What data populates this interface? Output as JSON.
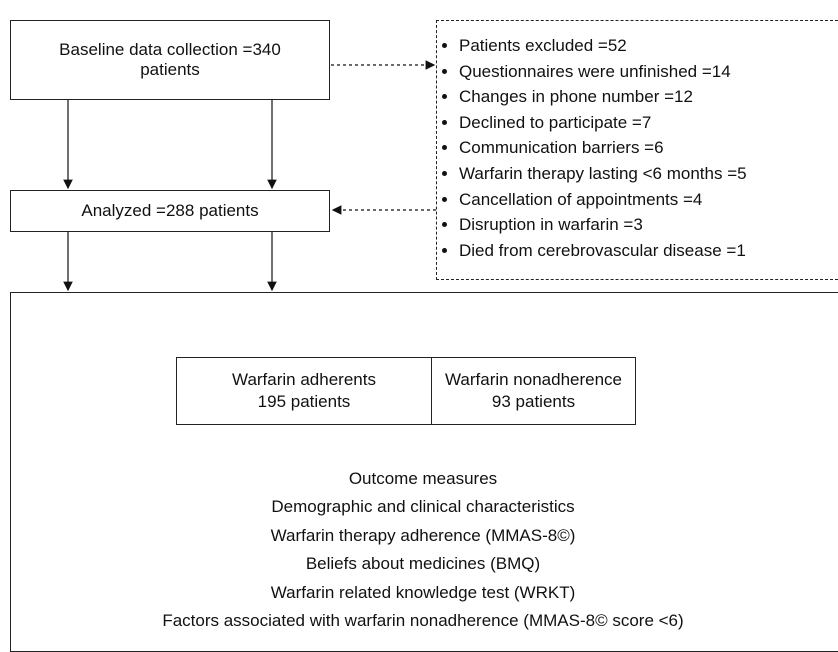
{
  "baseline": {
    "label": "Baseline data collection =340 patients"
  },
  "excluded": {
    "items": [
      "Patients excluded =52",
      "Questionnaires were unfinished =14",
      "Changes in phone number =12",
      "Declined to participate =7",
      "Communication barriers =6",
      "Warfarin therapy lasting <6 months =5",
      "Cancellation of appointments =4",
      "Disruption in warfarin =3",
      "Died from cerebrovascular disease =1"
    ]
  },
  "analyzed": {
    "label": "Analyzed =288 patients"
  },
  "groups": [
    {
      "name": "Warfarin adherents",
      "count": "195 patients"
    },
    {
      "name": "Warfarin nonadherence",
      "count": "93 patients"
    }
  ],
  "outcomes": {
    "title": "Outcome measures",
    "items": [
      "Demographic and clinical characteristics",
      "Warfarin therapy adherence (MMAS-8©)",
      "Beliefs about medicines (BMQ)",
      "Warfarin related knowledge test (WRKT)",
      "Factors associated with warfarin nonadherence (MMAS-8© score <6)"
    ]
  }
}
